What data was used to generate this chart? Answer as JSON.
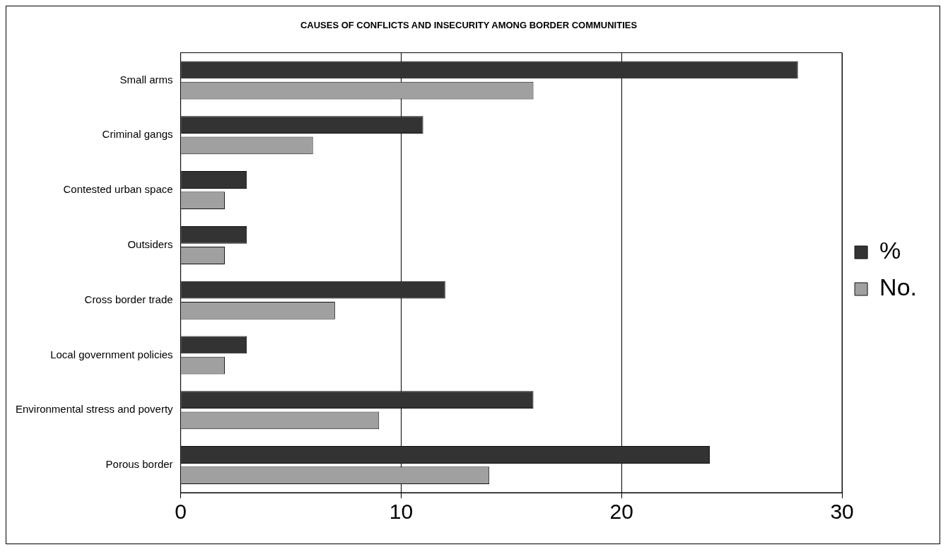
{
  "chart_data": {
    "type": "bar",
    "orientation": "horizontal",
    "title": "CAUSES OF CONFLICTS AND INSECURITY AMONG BORDER COMMUNITIES",
    "categories": [
      "Small arms",
      "Criminal gangs",
      "Contested urban space",
      "Outsiders",
      "Cross border trade",
      "Local government policies",
      "Environmental stress and poverty",
      "Porous border"
    ],
    "series": [
      {
        "name": "%",
        "color": "#333333",
        "values": [
          28,
          11,
          3,
          3,
          12,
          3,
          16,
          24
        ]
      },
      {
        "name": "No.",
        "color": "#a0a0a0",
        "values": [
          16,
          6,
          2,
          2,
          7,
          2,
          9,
          14
        ]
      }
    ],
    "xlim": [
      0,
      30
    ],
    "xticks": [
      0,
      10,
      20,
      30
    ],
    "grid": "x",
    "legend": "right"
  }
}
